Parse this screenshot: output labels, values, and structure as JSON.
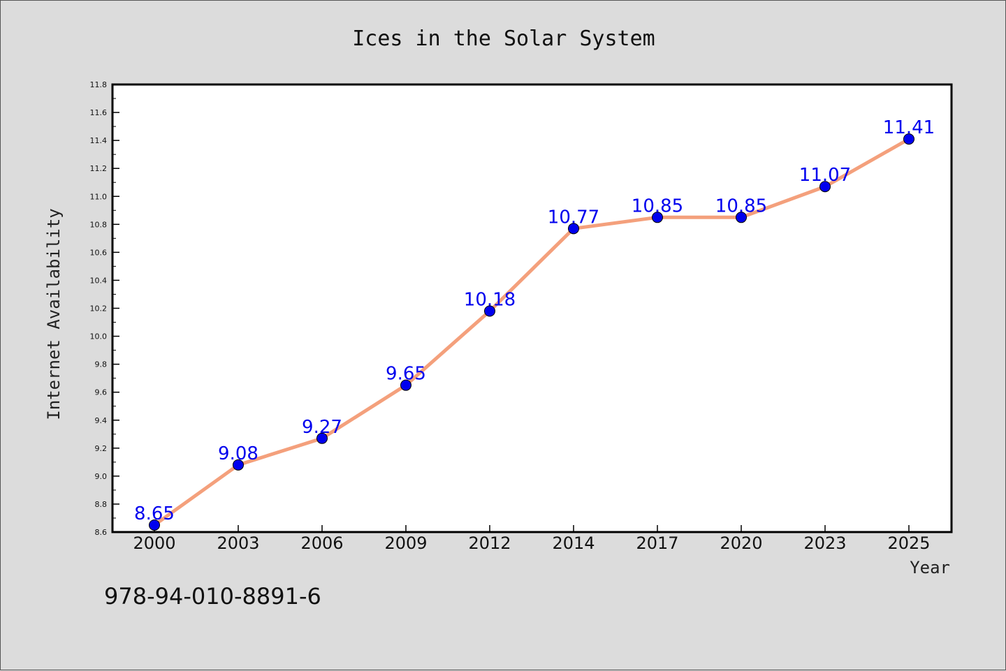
{
  "chart_data": {
    "type": "line",
    "title": "Ices in the Solar System",
    "xlabel": "Year",
    "ylabel": "Internet Availability",
    "categories": [
      "2000",
      "2003",
      "2006",
      "2009",
      "2012",
      "2014",
      "2017",
      "2020",
      "2023",
      "2025"
    ],
    "series": [
      {
        "values": [
          8.65,
          9.08,
          9.27,
          9.65,
          10.18,
          10.77,
          10.85,
          10.85,
          11.07,
          11.41
        ],
        "data_labels": [
          "8.65",
          "9.08",
          "9.27",
          "9.65",
          "10.18",
          "10.77",
          "10.85",
          "10.85",
          "11.07",
          "11.41"
        ]
      }
    ],
    "ylim": [
      8.6,
      11.8
    ],
    "yticks": [
      "8.6",
      "8.8",
      "9.0",
      "9.2",
      "9.4",
      "9.6",
      "9.8",
      "10.0",
      "10.2",
      "10.4",
      "10.6",
      "10.8",
      "11.0",
      "11.2",
      "11.4",
      "11.6",
      "11.8"
    ],
    "grid": false,
    "legend": "none",
    "colors": {
      "line": "#f4a07c",
      "marker": "#0000ee",
      "data_label": "#0000ee",
      "background": "#dcdcdc",
      "plot_area": "#ffffff"
    }
  },
  "footer": {
    "code": "978-94-010-8891-6"
  }
}
